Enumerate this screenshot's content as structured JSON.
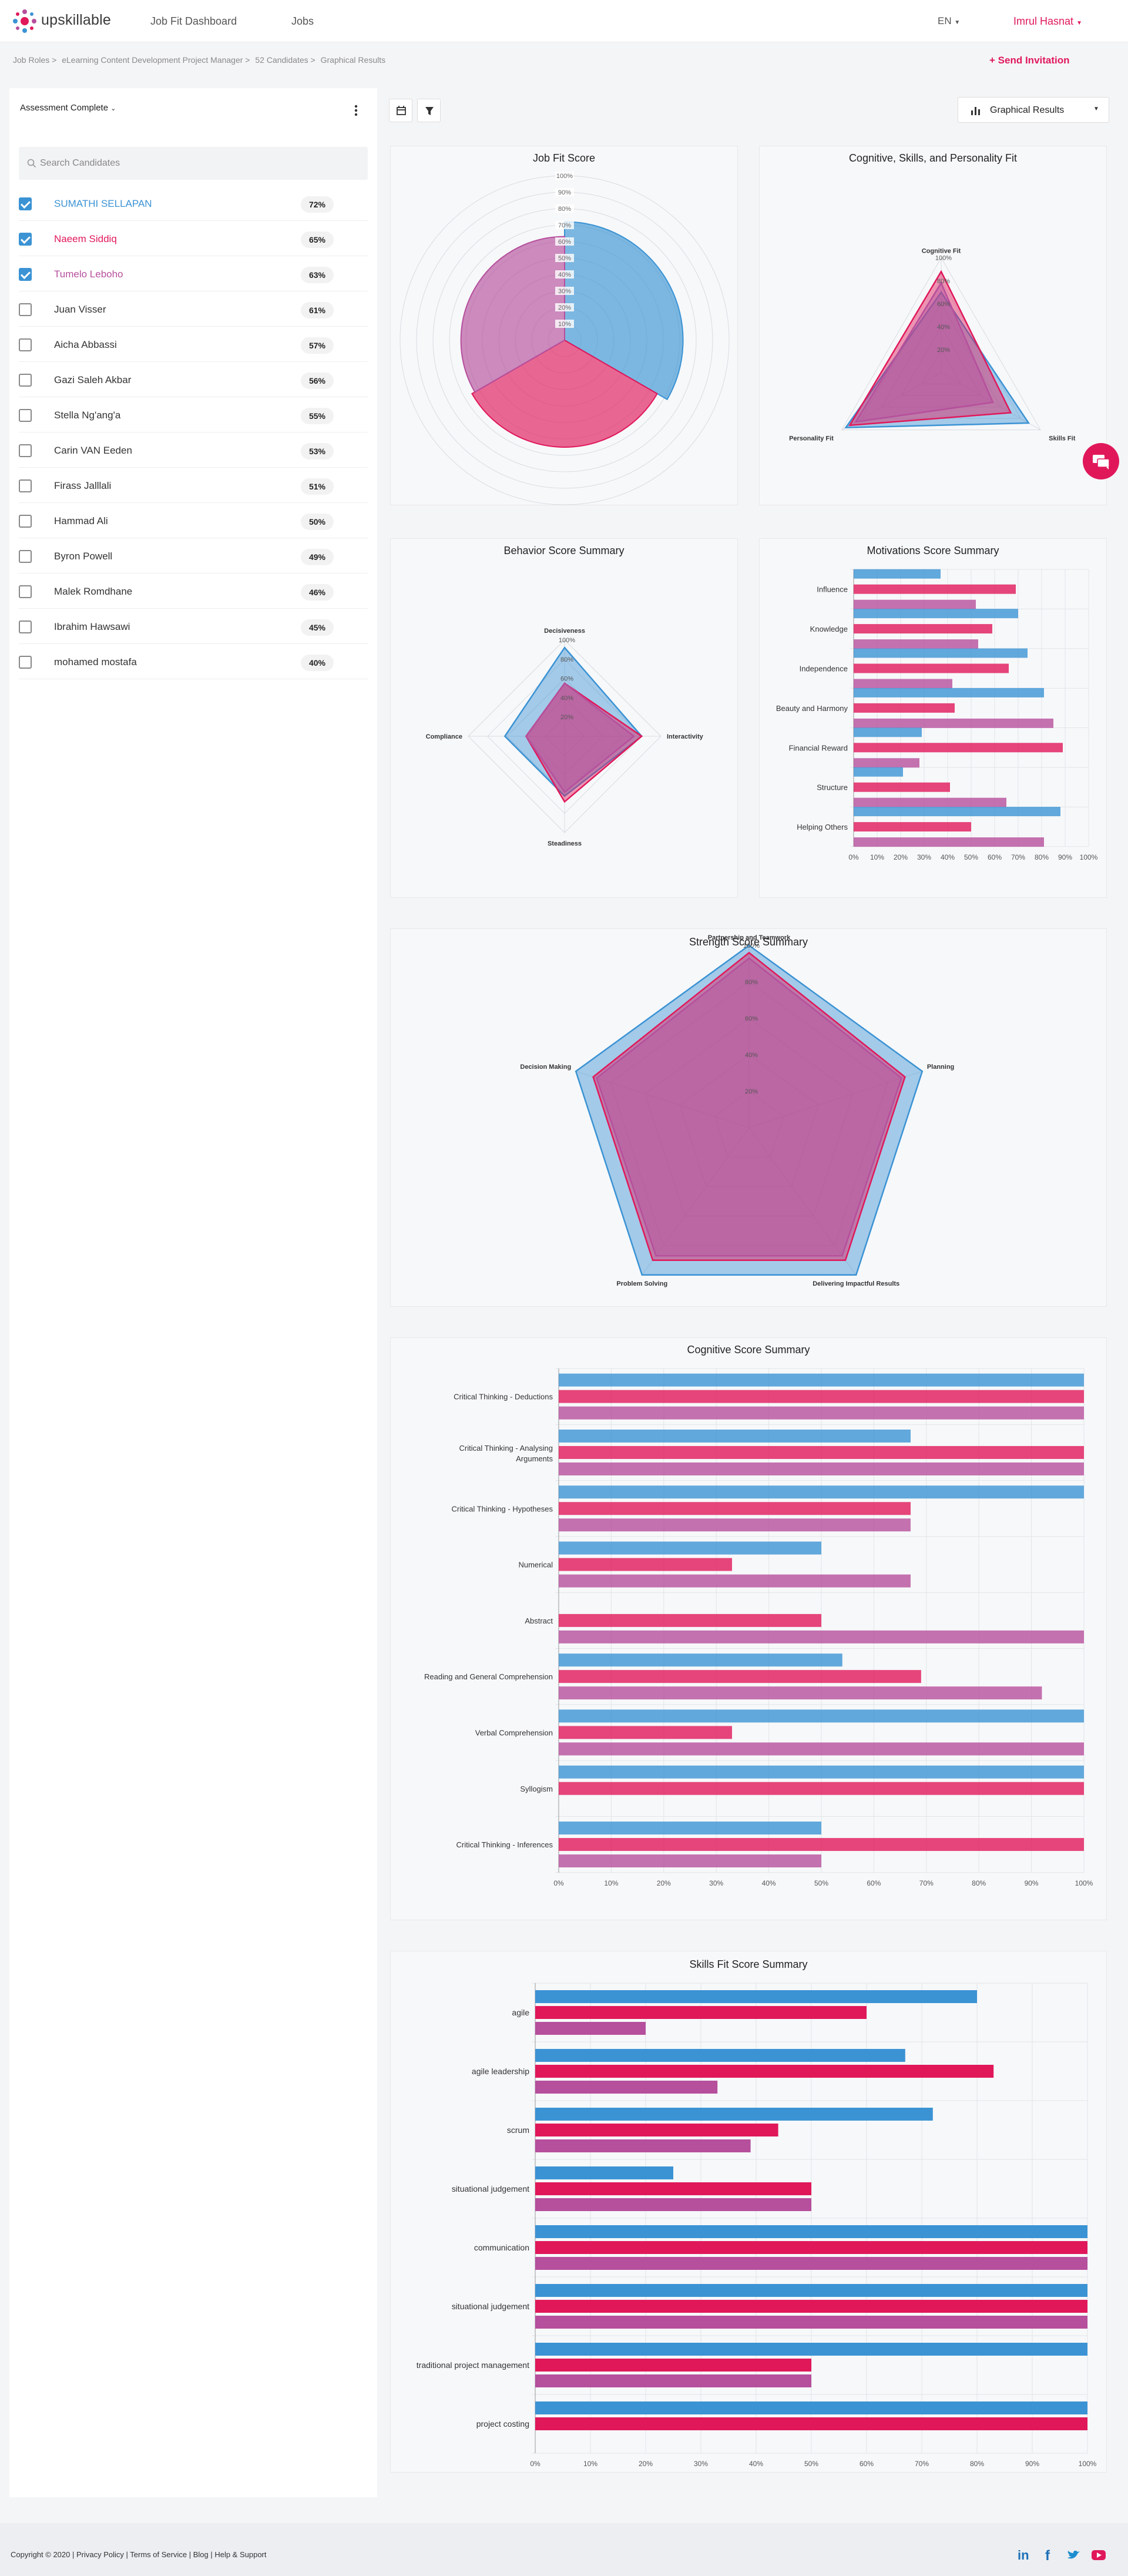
{
  "app": {
    "brand": "upskillable"
  },
  "nav": {
    "links": [
      "Job Fit Dashboard",
      "Jobs"
    ],
    "language": "EN",
    "user": "Imrul Hasnat"
  },
  "breadcrumb": {
    "items": [
      "Job Roles >",
      "eLearning Content Development Project Manager >",
      "52 Candidates >",
      "Graphical Results"
    ]
  },
  "actions": {
    "send_invitation": "Send Invitation",
    "graphical_results": "Graphical Results"
  },
  "filter": {
    "label": "Assessment Complete"
  },
  "search": {
    "placeholder": "Search Candidates"
  },
  "candidates": [
    {
      "name": "SUMATHI SELLAPAN",
      "score": "72%",
      "checked": true,
      "color": "#3b93d4"
    },
    {
      "name": "Naeem Siddiq",
      "score": "65%",
      "checked": true,
      "color": "#e0185a"
    },
    {
      "name": "Tumelo Leboho",
      "score": "63%",
      "checked": true,
      "color": "#b64f9c"
    },
    {
      "name": "Juan Visser",
      "score": "61%",
      "checked": false
    },
    {
      "name": "Aicha Abbassi",
      "score": "57%",
      "checked": false
    },
    {
      "name": "Gazi Saleh Akbar",
      "score": "56%",
      "checked": false
    },
    {
      "name": "Stella Ng'ang'a",
      "score": "55%",
      "checked": false
    },
    {
      "name": "Carin VAN Eeden",
      "score": "53%",
      "checked": false
    },
    {
      "name": "Firass Jalllali",
      "score": "51%",
      "checked": false
    },
    {
      "name": "Hammad Ali",
      "score": "50%",
      "checked": false
    },
    {
      "name": "Byron Powell",
      "score": "49%",
      "checked": false
    },
    {
      "name": "Malek Romdhane",
      "score": "46%",
      "checked": false
    },
    {
      "name": "Ibrahim Hawsawi",
      "score": "45%",
      "checked": false
    },
    {
      "name": "mohamed mostafa",
      "score": "40%",
      "checked": false
    }
  ],
  "colors": {
    "series1": "#3b93d4",
    "series2": "#e0185a",
    "series3": "#b64f9c",
    "accent": "#e0185a"
  },
  "chart_data": [
    {
      "id": "jobfit",
      "type": "polar-area",
      "title": "Job Fit Score",
      "ticks": [
        "100%",
        "90%",
        "80%",
        "70%",
        "60%",
        "50%",
        "40%",
        "30%",
        "20%",
        "10%"
      ],
      "values": [
        72,
        65,
        63
      ]
    },
    {
      "id": "cogfit",
      "type": "radar",
      "title": "Cognitive, Skills, and Personality Fit",
      "axes": [
        "Cognitive Fit",
        "Skills Fit",
        "Personality Fit"
      ],
      "ticks": [
        "100%",
        "80%",
        "60%",
        "40%",
        "20%"
      ],
      "series": [
        [
          70,
          88,
          96
        ],
        [
          88,
          70,
          92
        ],
        [
          78,
          52,
          86
        ]
      ]
    },
    {
      "id": "behavior",
      "type": "radar",
      "title": "Behavior Score Summary",
      "axes": [
        "Decisiveness",
        "Interactivity",
        "Steadiness",
        "Compliance"
      ],
      "ticks": [
        "100%",
        "80%",
        "60%",
        "40%",
        "20%"
      ],
      "series": [
        [
          92,
          80,
          62,
          62
        ],
        [
          55,
          80,
          68,
          40
        ],
        [
          55,
          72,
          58,
          40
        ]
      ]
    },
    {
      "id": "motivations",
      "type": "hbar",
      "title": "Motivations Score Summary",
      "categories": [
        "Influence",
        "Knowledge",
        "Independence",
        "Beauty and Harmony",
        "Financial Reward",
        "Structure",
        "Helping Others"
      ],
      "series": [
        [
          37,
          70,
          74,
          81,
          29,
          21,
          88
        ],
        [
          69,
          59,
          66,
          43,
          89,
          41,
          50
        ],
        [
          52,
          53,
          42,
          85,
          28,
          65,
          81
        ]
      ],
      "xticks": [
        "0%",
        "10%",
        "20%",
        "30%",
        "40%",
        "50%",
        "60%",
        "70%",
        "80%",
        "90%",
        "100%"
      ],
      "xlim": [
        0,
        100
      ]
    },
    {
      "id": "strength",
      "type": "radar",
      "title": "Strength Score Summary",
      "axes": [
        "Partnership and Teamwork",
        "Planning",
        "Delivering Impactful Results",
        "Problem Solving",
        "Decision Making"
      ],
      "ticks": [
        "100%",
        "80%",
        "60%",
        "40%",
        "20%"
      ],
      "series": [
        [
          100,
          100,
          100,
          100,
          100
        ],
        [
          96,
          90,
          90,
          90,
          90
        ],
        [
          93,
          88,
          87,
          87,
          88
        ]
      ]
    },
    {
      "id": "cognitive",
      "type": "hbar",
      "title": "Cognitive Score Summary",
      "categories": [
        "Critical Thinking - Deductions",
        "Critical Thinking - Analysing Arguments",
        "Critical Thinking - Hypotheses",
        "Numerical",
        "Abstract",
        "Reading and General Comprehension",
        "Verbal Comprehension",
        "Syllogism",
        "Critical Thinking - Inferences"
      ],
      "series": [
        [
          100,
          67,
          100,
          50,
          0,
          54,
          100,
          100,
          50
        ],
        [
          100,
          100,
          67,
          33,
          50,
          69,
          33,
          100,
          100
        ],
        [
          100,
          100,
          67,
          67,
          100,
          92,
          100,
          0,
          50
        ]
      ],
      "xticks": [
        "0%",
        "10%",
        "20%",
        "30%",
        "40%",
        "50%",
        "60%",
        "70%",
        "80%",
        "90%",
        "100%"
      ],
      "xlim": [
        0,
        100
      ]
    },
    {
      "id": "skills",
      "type": "hbar",
      "title": "Skills Fit Score Summary",
      "categories": [
        "agile",
        "agile leadership",
        "scrum",
        "situational judgement",
        "communication",
        "situational judgement",
        "traditional project management",
        "project costing"
      ],
      "series": [
        [
          80,
          67,
          72,
          25,
          100,
          100,
          100,
          100
        ],
        [
          60,
          83,
          44,
          50,
          100,
          100,
          50,
          100
        ],
        [
          20,
          33,
          39,
          50,
          100,
          100,
          50,
          0
        ]
      ],
      "xticks": [
        "0%",
        "10%",
        "20%",
        "30%",
        "40%",
        "50%",
        "60%",
        "70%",
        "80%",
        "90%",
        "100%"
      ],
      "xlim": [
        0,
        100
      ]
    }
  ],
  "footer": {
    "copyright": "Copyright © 2020",
    "links": [
      "Privacy Policy",
      "Terms of Service",
      "Blog",
      "Help & Support"
    ]
  }
}
